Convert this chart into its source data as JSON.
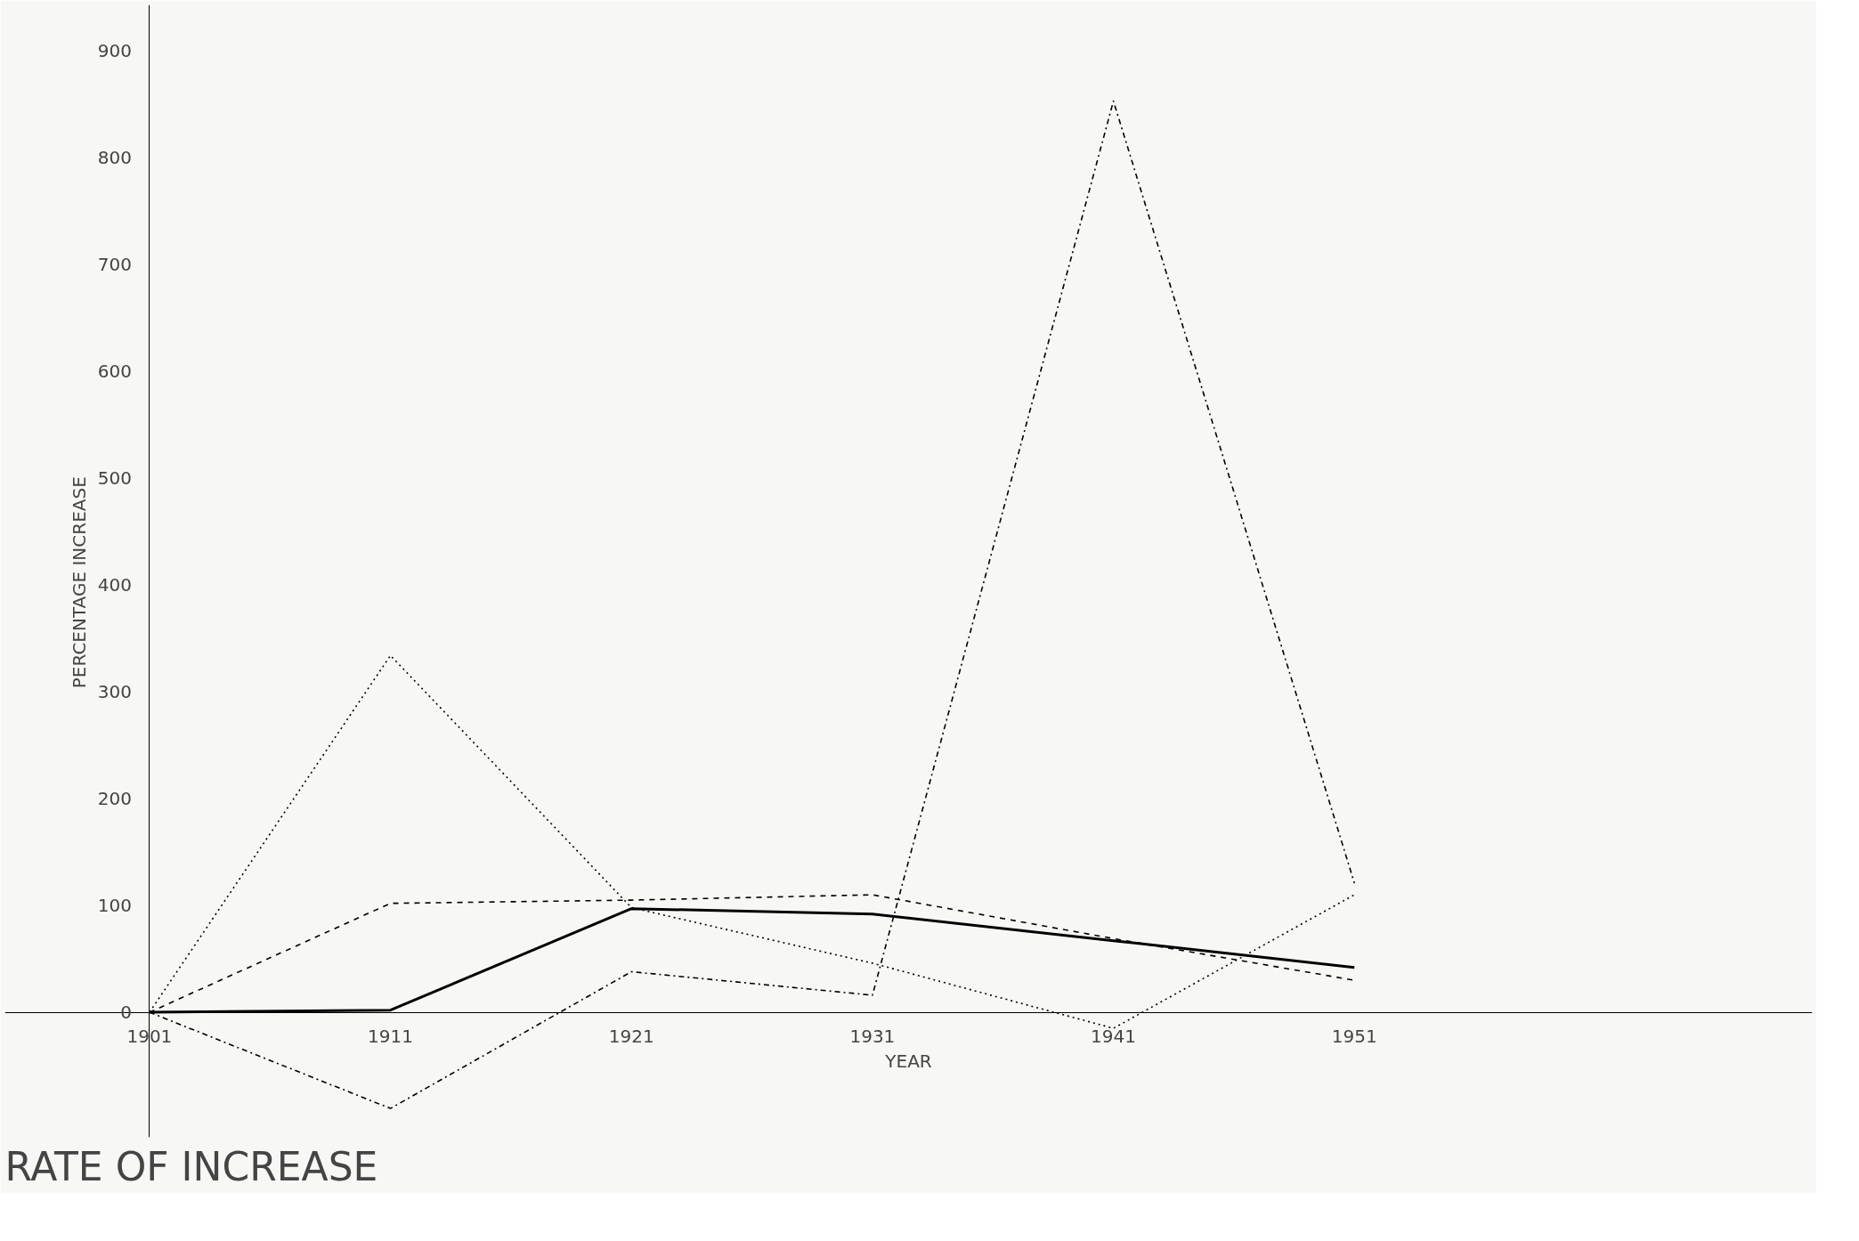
{
  "chart_data": {
    "type": "line",
    "title": "RATE OF INCREASE",
    "xlabel": "YEAR",
    "ylabel": "PERCENTAGE     INCREASE",
    "x": [
      1901,
      1911,
      1921,
      1931,
      1941,
      1951
    ],
    "series": [
      {
        "color": "#000000",
        "line_style": "solid",
        "values": [
          0,
          2,
          97,
          92,
          67,
          42
        ]
      },
      {
        "color": "#000000",
        "line_style": "dashed",
        "values": [
          0,
          102,
          105,
          110,
          69,
          30
        ]
      },
      {
        "color": "#000000",
        "line_style": "dotted",
        "values": [
          0,
          334,
          98,
          46,
          -15,
          110
        ]
      },
      {
        "color": "#000000",
        "line_style": "dashdot",
        "values": [
          0,
          -90,
          38,
          16,
          853,
          121
        ]
      }
    ],
    "xlim": [
      1895,
      1970
    ],
    "ylim": [
      -117,
      943
    ],
    "xticks": [
      1901,
      1911,
      1921,
      1931,
      1941,
      1951
    ],
    "yticks": [
      0,
      100,
      200,
      300,
      400,
      500,
      600,
      700,
      800,
      900
    ],
    "grid": false,
    "marker": "none"
  }
}
